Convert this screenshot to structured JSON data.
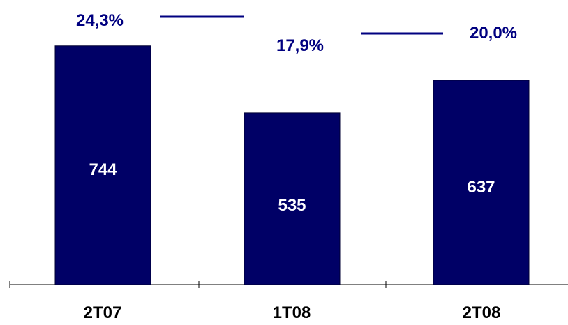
{
  "chart_data": {
    "type": "bar",
    "categories": [
      "2T07",
      "1T08",
      "2T08"
    ],
    "values": [
      744,
      535,
      637
    ],
    "value_labels": [
      "744",
      "535",
      "637"
    ],
    "percent_labels": [
      "24,3%",
      "17,9%",
      "20,0%"
    ],
    "grid": false,
    "legend": "none"
  },
  "colors": {
    "bar": "#000066",
    "bar_stroke": "#000033",
    "value_text": "#ffffff",
    "percent_text": "#000080",
    "connector": "#000080",
    "category_text": "#000000",
    "axis": "#000000"
  }
}
